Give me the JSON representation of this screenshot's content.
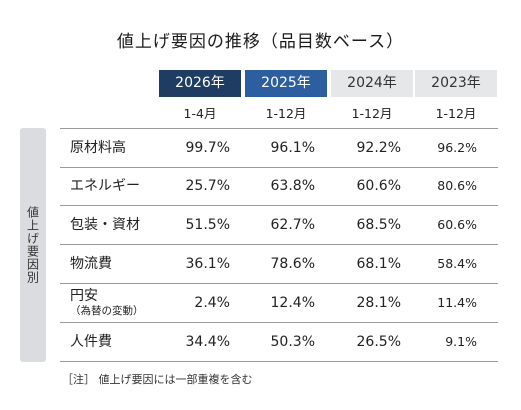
{
  "title": "値上げ要因の推移（品目数ベース）",
  "side_label": "値上げ要因別",
  "columns": [
    {
      "year": "2026年",
      "period": "1-4月",
      "bg": "#1f3c63",
      "fg": "#ffffff"
    },
    {
      "year": "2025年",
      "period": "1-12月",
      "bg": "#2d5ea0",
      "fg": "#ffffff"
    },
    {
      "year": "2024年",
      "period": "1-12月",
      "bg": "#e6e7e9",
      "fg": "#333333"
    },
    {
      "year": "2023年",
      "period": "1-12月",
      "bg": "#e6e7e9",
      "fg": "#333333"
    }
  ],
  "rows": [
    {
      "label": "原材料高",
      "sublabel": "",
      "values": [
        "99.7%",
        "96.1%",
        "92.2%",
        "96.2%"
      ]
    },
    {
      "label": "エネルギー",
      "sublabel": "",
      "values": [
        "25.7%",
        "63.8%",
        "60.6%",
        "80.6%"
      ]
    },
    {
      "label": "包装・資材",
      "sublabel": "",
      "values": [
        "51.5%",
        "62.7%",
        "68.5%",
        "60.6%"
      ]
    },
    {
      "label": "物流費",
      "sublabel": "",
      "values": [
        "36.1%",
        "78.6%",
        "68.1%",
        "58.4%"
      ]
    },
    {
      "label": "円安",
      "sublabel": "（為替の変動）",
      "values": [
        "2.4%",
        "12.4%",
        "28.1%",
        "11.4%"
      ]
    },
    {
      "label": "人件費",
      "sublabel": "",
      "values": [
        "34.4%",
        "50.3%",
        "26.5%",
        "9.1%"
      ]
    }
  ],
  "note": "［注］ 値上げ要因には一部重複を含む",
  "chart_data": {
    "type": "table",
    "title": "値上げ要因の推移（品目数ベース）",
    "row_group_label": "値上げ要因別",
    "columns": [
      "2026年 1-4月",
      "2025年 1-12月",
      "2024年 1-12月",
      "2023年 1-12月"
    ],
    "rows": [
      "原材料高",
      "エネルギー",
      "包装・資材",
      "物流費",
      "円安（為替の変動）",
      "人件費"
    ],
    "values": [
      [
        99.7,
        96.1,
        92.2,
        96.2
      ],
      [
        25.7,
        63.8,
        60.6,
        80.6
      ],
      [
        51.5,
        62.7,
        68.5,
        60.6
      ],
      [
        36.1,
        78.6,
        68.1,
        58.4
      ],
      [
        2.4,
        12.4,
        28.1,
        11.4
      ],
      [
        34.4,
        50.3,
        26.5,
        9.1
      ]
    ],
    "unit": "%"
  }
}
